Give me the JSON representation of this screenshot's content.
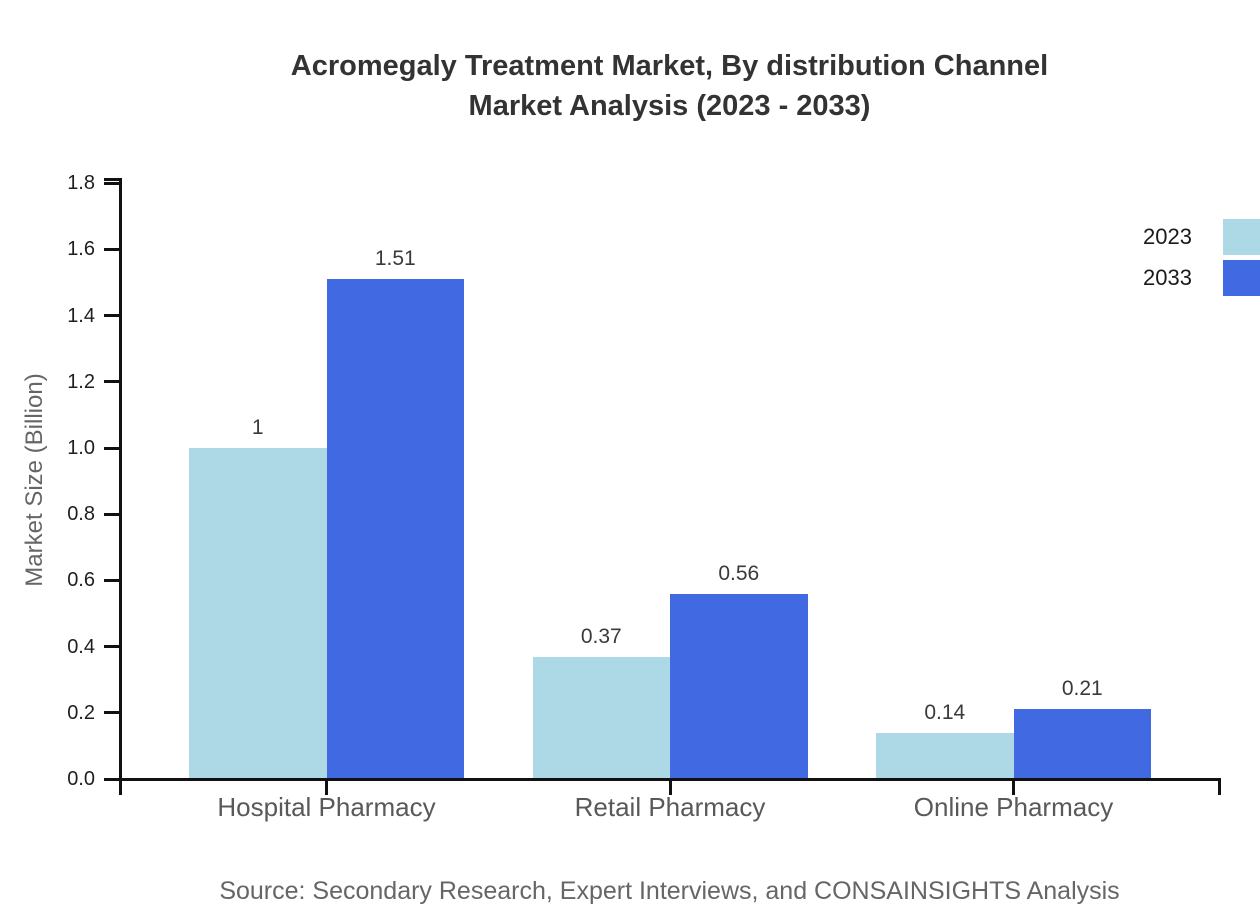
{
  "chart": {
    "title_line1": "Acromegaly Treatment Market, By distribution Channel",
    "title_line2": "Market Analysis (2023 - 2033)",
    "source": "Source: Secondary Research, Expert Interviews, and CONSAINSIGHTS Analysis"
  },
  "chart_data": {
    "type": "bar",
    "title": "Acromegaly Treatment Market, By distribution Channel Market Analysis (2023 - 2033)",
    "categories": [
      "Hospital Pharmacy",
      "Retail Pharmacy",
      "Online Pharmacy"
    ],
    "series": [
      {
        "name": "2023",
        "color": "#ADD8E6",
        "values": [
          1,
          0.37,
          0.14
        ],
        "labels": [
          "1",
          "0.37",
          "0.14"
        ]
      },
      {
        "name": "2033",
        "color": "#4169E1",
        "values": [
          1.51,
          0.56,
          0.21
        ],
        "labels": [
          "1.51",
          "0.56",
          "0.21"
        ]
      }
    ],
    "xlabel": "",
    "ylabel": "Market Size (Billion)",
    "ylim": [
      0,
      1.8
    ],
    "ytick_labels": [
      "0.0",
      "0.2",
      "0.4",
      "0.6",
      "0.8",
      "1.0",
      "1.2",
      "1.4",
      "1.6",
      "1.8"
    ],
    "grid": false,
    "legend_position": "top-right-outside",
    "axis_color": "#111111"
  }
}
